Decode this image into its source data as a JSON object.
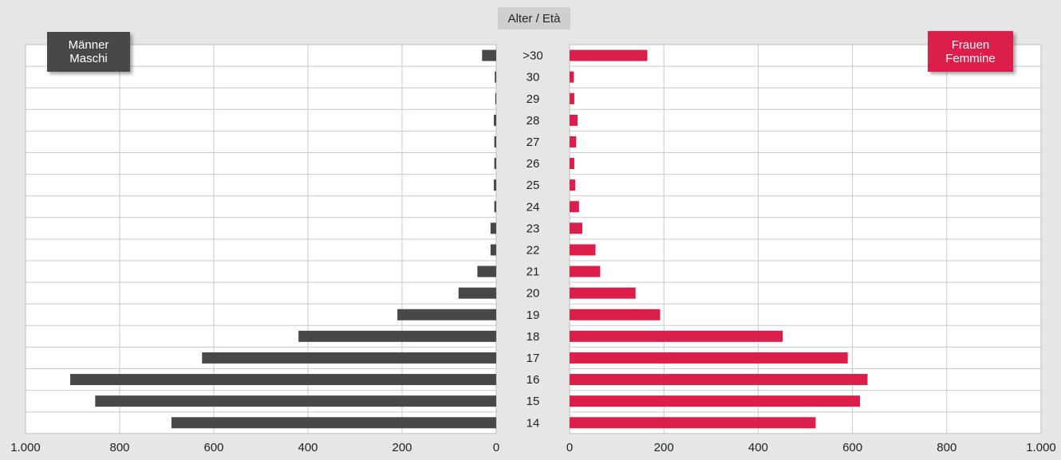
{
  "chart_data": {
    "type": "bar",
    "title": "Alter / Età",
    "categories": [
      ">30",
      "30",
      "29",
      "28",
      "27",
      "26",
      "25",
      "24",
      "23",
      "22",
      "21",
      "20",
      "19",
      "18",
      "17",
      "16",
      "15",
      "14"
    ],
    "series": [
      {
        "name": "Männer\nMaschi",
        "lines": [
          "Männer",
          "Maschi"
        ],
        "color": "#4a4747",
        "values": [
          30,
          3,
          2,
          5,
          4,
          4,
          5,
          4,
          12,
          12,
          40,
          80,
          210,
          420,
          625,
          905,
          852,
          690
        ]
      },
      {
        "name": "Frauen\nFemmine",
        "lines": [
          "Frauen",
          "Femmine"
        ],
        "color": "#dc1e4a",
        "values": [
          165,
          9,
          10,
          17,
          14,
          10,
          12,
          20,
          27,
          55,
          65,
          140,
          192,
          452,
          590,
          632,
          616,
          522
        ]
      }
    ],
    "xlim": [
      0,
      1000
    ],
    "x_ticks": [
      "1.000",
      "800",
      "600",
      "400",
      "200",
      "0"
    ],
    "x_ticks_right": [
      "0",
      "200",
      "400",
      "600",
      "800",
      "1.000"
    ],
    "grid": true
  }
}
